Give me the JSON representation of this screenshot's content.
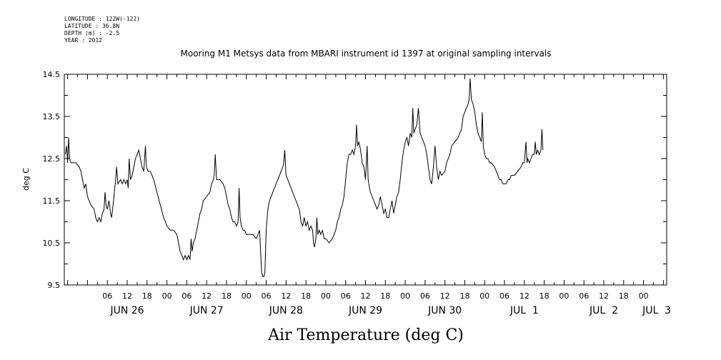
{
  "meta": {
    "longitude": "LONGITUDE : 122W(-122)",
    "latitude": "LATITUDE : 36.8N",
    "depth": "DEPTH (m) : -2.5",
    "year": "YEAR : 2012"
  },
  "chart_data": {
    "type": "line",
    "title": "Mooring M1 Metsys data from MBARI instrument id 1397 at original sampling intervals",
    "xlabel": "Air Temperature (deg C)",
    "ylabel": "deg C",
    "ylim": [
      9.5,
      14.5
    ],
    "yticks": [
      "9.5",
      "10.5",
      "11.5",
      "12.5",
      "13.5",
      "14.5"
    ],
    "x_units": "hours since JUN 26 00:00",
    "xlim": [
      -7,
      175
    ],
    "hour_labels": [
      {
        "x": 6,
        "label": "06"
      },
      {
        "x": 12,
        "label": "12"
      },
      {
        "x": 18,
        "label": "18"
      },
      {
        "x": 24,
        "label": "00"
      },
      {
        "x": 30,
        "label": "06"
      },
      {
        "x": 36,
        "label": "12"
      },
      {
        "x": 42,
        "label": "18"
      },
      {
        "x": 48,
        "label": "00"
      },
      {
        "x": 54,
        "label": "06"
      },
      {
        "x": 60,
        "label": "12"
      },
      {
        "x": 66,
        "label": "18"
      },
      {
        "x": 72,
        "label": "00"
      },
      {
        "x": 78,
        "label": "06"
      },
      {
        "x": 84,
        "label": "12"
      },
      {
        "x": 90,
        "label": "18"
      },
      {
        "x": 96,
        "label": "00"
      },
      {
        "x": 102,
        "label": "06"
      },
      {
        "x": 108,
        "label": "12"
      },
      {
        "x": 114,
        "label": "18"
      },
      {
        "x": 120,
        "label": "00"
      },
      {
        "x": 126,
        "label": "06"
      },
      {
        "x": 132,
        "label": "12"
      },
      {
        "x": 138,
        "label": "18"
      },
      {
        "x": 144,
        "label": "00"
      },
      {
        "x": 150,
        "label": "06"
      },
      {
        "x": 156,
        "label": "12"
      },
      {
        "x": 162,
        "label": "18"
      },
      {
        "x": 168,
        "label": "00"
      }
    ],
    "day_labels": [
      {
        "x": 12,
        "label": "JUN 26"
      },
      {
        "x": 36,
        "label": "JUN 27"
      },
      {
        "x": 60,
        "label": "JUN 28"
      },
      {
        "x": 84,
        "label": "JUN 29"
      },
      {
        "x": 108,
        "label": "JUN 30"
      },
      {
        "x": 132,
        "label": "JUL  1"
      },
      {
        "x": 156,
        "label": "JUL  2"
      },
      {
        "x": 172,
        "label": "JUL  3"
      }
    ],
    "series": [
      {
        "color": "#000000",
        "points": [
          [
            -6.7,
            12.6
          ],
          [
            -6.3,
            12.8
          ],
          [
            -6.0,
            12.4
          ],
          [
            -5.7,
            13.0
          ],
          [
            -5.4,
            12.5
          ],
          [
            -5.0,
            12.4
          ],
          [
            -4.5,
            12.4
          ],
          [
            -3.5,
            12.4
          ],
          [
            -2.5,
            12.3
          ],
          [
            -2.0,
            12.2
          ],
          [
            -1.5,
            12.0
          ],
          [
            -1.0,
            11.8
          ],
          [
            -0.5,
            11.9
          ],
          [
            0.0,
            11.6
          ],
          [
            0.5,
            11.5
          ],
          [
            1.0,
            11.4
          ],
          [
            2.0,
            11.3
          ],
          [
            2.5,
            11.1
          ],
          [
            3.0,
            11.0
          ],
          [
            3.5,
            11.1
          ],
          [
            4.0,
            11.0
          ],
          [
            4.5,
            11.2
          ],
          [
            5.0,
            11.3
          ],
          [
            5.3,
            11.7
          ],
          [
            5.6,
            11.4
          ],
          [
            6.0,
            11.3
          ],
          [
            6.5,
            11.5
          ],
          [
            7.0,
            11.2
          ],
          [
            7.3,
            11.1
          ],
          [
            7.6,
            11.3
          ],
          [
            8.0,
            11.6
          ],
          [
            8.5,
            12.0
          ],
          [
            8.8,
            12.3
          ],
          [
            9.2,
            11.9
          ],
          [
            10.0,
            12.0
          ],
          [
            10.5,
            11.9
          ],
          [
            11.0,
            12.0
          ],
          [
            11.5,
            11.9
          ],
          [
            12.0,
            12.0
          ],
          [
            12.3,
            11.8
          ],
          [
            12.6,
            12.5
          ],
          [
            13.0,
            12.0
          ],
          [
            13.5,
            12.1
          ],
          [
            14.0,
            12.3
          ],
          [
            14.5,
            12.5
          ],
          [
            15.0,
            12.6
          ],
          [
            15.5,
            12.7
          ],
          [
            16.0,
            12.5
          ],
          [
            16.5,
            12.3
          ],
          [
            17.0,
            12.2
          ],
          [
            17.5,
            12.8
          ],
          [
            17.8,
            12.3
          ],
          [
            18.3,
            12.2
          ],
          [
            19.0,
            12.2
          ],
          [
            19.5,
            12.1
          ],
          [
            20.0,
            12.0
          ],
          [
            21.0,
            11.7
          ],
          [
            22.0,
            11.4
          ],
          [
            23.0,
            11.1
          ],
          [
            24.0,
            10.9
          ],
          [
            25.0,
            10.8
          ],
          [
            26.0,
            10.8
          ],
          [
            27.0,
            10.7
          ],
          [
            27.5,
            10.5
          ],
          [
            28.0,
            10.3
          ],
          [
            28.5,
            10.2
          ],
          [
            29.0,
            10.1
          ],
          [
            29.5,
            10.2
          ],
          [
            30.0,
            10.1
          ],
          [
            30.5,
            10.2
          ],
          [
            31.0,
            10.1
          ],
          [
            31.3,
            10.6
          ],
          [
            31.6,
            10.3
          ],
          [
            32.0,
            10.5
          ],
          [
            32.5,
            10.6
          ],
          [
            33.0,
            10.8
          ],
          [
            33.5,
            11.0
          ],
          [
            34.0,
            11.2
          ],
          [
            34.5,
            11.3
          ],
          [
            35.0,
            11.5
          ],
          [
            36.0,
            11.6
          ],
          [
            37.0,
            11.7
          ],
          [
            37.5,
            11.9
          ],
          [
            38.0,
            12.0
          ],
          [
            38.3,
            12.1
          ],
          [
            38.6,
            12.6
          ],
          [
            39.0,
            12.0
          ],
          [
            40.0,
            12.0
          ],
          [
            41.0,
            11.9
          ],
          [
            41.5,
            11.8
          ],
          [
            42.0,
            11.6
          ],
          [
            42.5,
            11.4
          ],
          [
            43.0,
            11.3
          ],
          [
            43.5,
            11.1
          ],
          [
            44.0,
            11.0
          ],
          [
            44.5,
            11.0
          ],
          [
            45.0,
            10.9
          ],
          [
            45.5,
            11.0
          ],
          [
            45.8,
            11.8
          ],
          [
            46.1,
            11.1
          ],
          [
            46.5,
            10.9
          ],
          [
            47.0,
            10.8
          ],
          [
            47.5,
            10.8
          ],
          [
            48.0,
            10.7
          ],
          [
            49.0,
            10.7
          ],
          [
            50.0,
            10.7
          ],
          [
            51.0,
            10.6
          ],
          [
            51.5,
            10.7
          ],
          [
            52.0,
            10.8
          ],
          [
            52.3,
            10.3
          ],
          [
            52.6,
            9.8
          ],
          [
            53.0,
            9.7
          ],
          [
            53.3,
            9.7
          ],
          [
            53.6,
            9.8
          ],
          [
            54.0,
            10.8
          ],
          [
            54.5,
            11.3
          ],
          [
            55.0,
            11.5
          ],
          [
            55.5,
            11.6
          ],
          [
            56.0,
            11.7
          ],
          [
            56.5,
            11.8
          ],
          [
            57.0,
            11.9
          ],
          [
            57.5,
            12.0
          ],
          [
            58.0,
            12.1
          ],
          [
            58.5,
            12.2
          ],
          [
            59.0,
            12.3
          ],
          [
            59.3,
            12.4
          ],
          [
            59.6,
            12.7
          ],
          [
            60.0,
            12.1
          ],
          [
            60.5,
            12.0
          ],
          [
            61.0,
            11.9
          ],
          [
            61.5,
            11.8
          ],
          [
            62.0,
            11.7
          ],
          [
            62.5,
            11.6
          ],
          [
            63.0,
            11.5
          ],
          [
            63.5,
            11.4
          ],
          [
            64.0,
            11.3
          ],
          [
            64.5,
            11.0
          ],
          [
            65.0,
            10.9
          ],
          [
            65.5,
            11.1
          ],
          [
            66.0,
            10.9
          ],
          [
            66.5,
            11.0
          ],
          [
            67.0,
            10.8
          ],
          [
            67.5,
            10.9
          ],
          [
            68.0,
            10.8
          ],
          [
            68.3,
            10.5
          ],
          [
            68.6,
            10.4
          ],
          [
            69.0,
            10.6
          ],
          [
            69.3,
            11.1
          ],
          [
            69.6,
            10.7
          ],
          [
            70.0,
            10.8
          ],
          [
            70.5,
            10.7
          ],
          [
            71.0,
            10.8
          ],
          [
            71.5,
            10.6
          ],
          [
            72.0,
            10.6
          ],
          [
            73.0,
            10.5
          ],
          [
            74.0,
            10.6
          ],
          [
            75.0,
            10.8
          ],
          [
            75.5,
            11.0
          ],
          [
            76.0,
            11.1
          ],
          [
            76.5,
            11.3
          ],
          [
            77.0,
            11.4
          ],
          [
            77.5,
            11.6
          ],
          [
            78.0,
            12.0
          ],
          [
            78.5,
            12.4
          ],
          [
            79.0,
            12.6
          ],
          [
            79.5,
            12.6
          ],
          [
            80.0,
            12.7
          ],
          [
            80.5,
            12.6
          ],
          [
            81.0,
            12.8
          ],
          [
            81.3,
            13.3
          ],
          [
            81.6,
            12.8
          ],
          [
            82.0,
            12.9
          ],
          [
            82.5,
            12.7
          ],
          [
            83.0,
            12.4
          ],
          [
            83.5,
            12.3
          ],
          [
            84.0,
            12.0
          ],
          [
            84.5,
            12.8
          ],
          [
            84.8,
            12.0
          ],
          [
            85.2,
            11.8
          ],
          [
            85.5,
            11.7
          ],
          [
            86.0,
            11.6
          ],
          [
            86.5,
            11.5
          ],
          [
            87.0,
            11.4
          ],
          [
            87.5,
            11.3
          ],
          [
            88.0,
            11.4
          ],
          [
            88.5,
            11.6
          ],
          [
            89.0,
            11.4
          ],
          [
            89.5,
            11.2
          ],
          [
            90.0,
            11.3
          ],
          [
            90.5,
            11.1
          ],
          [
            91.0,
            11.1
          ],
          [
            91.5,
            11.3
          ],
          [
            92.0,
            11.5
          ],
          [
            92.5,
            11.2
          ],
          [
            93.0,
            11.4
          ],
          [
            93.5,
            11.6
          ],
          [
            94.0,
            11.7
          ],
          [
            94.5,
            12.0
          ],
          [
            95.0,
            12.4
          ],
          [
            95.5,
            12.7
          ],
          [
            96.0,
            12.9
          ],
          [
            96.5,
            13.0
          ],
          [
            97.0,
            12.8
          ],
          [
            97.5,
            13.1
          ],
          [
            98.0,
            13.0
          ],
          [
            98.3,
            13.7
          ],
          [
            98.6,
            13.1
          ],
          [
            99.0,
            13.2
          ],
          [
            99.5,
            13.3
          ],
          [
            100.0,
            13.7
          ],
          [
            100.5,
            13.1
          ],
          [
            101.0,
            13.0
          ],
          [
            101.5,
            12.9
          ],
          [
            102.0,
            12.8
          ],
          [
            102.5,
            12.6
          ],
          [
            103.0,
            12.3
          ],
          [
            103.5,
            12.0
          ],
          [
            104.0,
            11.9
          ],
          [
            104.5,
            12.3
          ],
          [
            105.0,
            12.8
          ],
          [
            105.5,
            12.3
          ],
          [
            106.0,
            12.0
          ],
          [
            106.5,
            12.2
          ],
          [
            107.0,
            12.1
          ],
          [
            108.0,
            12.2
          ],
          [
            108.5,
            12.4
          ],
          [
            109.0,
            12.5
          ],
          [
            109.5,
            12.6
          ],
          [
            110.0,
            12.8
          ],
          [
            111.0,
            12.9
          ],
          [
            112.0,
            13.0
          ],
          [
            113.0,
            13.2
          ],
          [
            113.5,
            13.5
          ],
          [
            114.0,
            13.6
          ],
          [
            114.5,
            13.7
          ],
          [
            115.0,
            13.8
          ],
          [
            115.3,
            13.9
          ],
          [
            115.6,
            14.4
          ],
          [
            116.0,
            13.9
          ],
          [
            116.5,
            13.8
          ],
          [
            117.0,
            13.6
          ],
          [
            117.5,
            13.3
          ],
          [
            118.0,
            13.1
          ],
          [
            118.5,
            13.0
          ],
          [
            119.0,
            12.9
          ],
          [
            119.3,
            13.6
          ],
          [
            119.6,
            12.8
          ],
          [
            120.0,
            12.6
          ],
          [
            120.5,
            12.5
          ],
          [
            121.0,
            12.5
          ],
          [
            121.5,
            12.4
          ],
          [
            122.0,
            12.4
          ],
          [
            123.0,
            12.3
          ],
          [
            123.5,
            12.2
          ],
          [
            124.0,
            12.1
          ],
          [
            124.5,
            12.0
          ],
          [
            125.0,
            12.0
          ],
          [
            125.5,
            11.9
          ],
          [
            126.0,
            11.9
          ],
          [
            126.5,
            11.9
          ],
          [
            127.0,
            12.0
          ],
          [
            127.5,
            12.0
          ],
          [
            128.0,
            12.1
          ],
          [
            129.0,
            12.1
          ],
          [
            130.0,
            12.2
          ],
          [
            131.0,
            12.3
          ],
          [
            131.5,
            12.4
          ],
          [
            132.0,
            12.4
          ],
          [
            132.5,
            12.9
          ],
          [
            132.8,
            12.4
          ],
          [
            133.0,
            12.5
          ],
          [
            133.5,
            12.4
          ],
          [
            134.0,
            12.5
          ],
          [
            134.5,
            12.6
          ],
          [
            135.0,
            12.6
          ],
          [
            135.3,
            12.9
          ],
          [
            135.6,
            12.6
          ],
          [
            136.0,
            12.7
          ],
          [
            136.5,
            12.6
          ],
          [
            137.0,
            12.7
          ],
          [
            137.3,
            13.2
          ],
          [
            137.6,
            12.7
          ]
        ]
      }
    ]
  }
}
